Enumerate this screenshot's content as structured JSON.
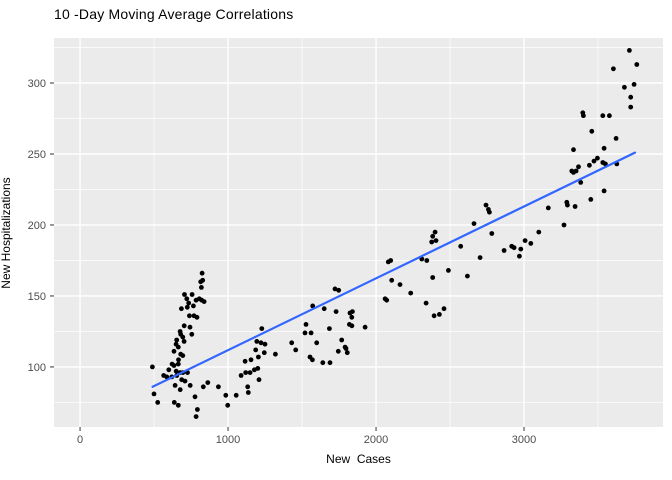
{
  "chart_data": {
    "type": "scatter",
    "title": "10 -Day Moving Average Correlations",
    "xlabel": "New  Cases",
    "ylabel": "New Hospitalizations",
    "x_ticks": [
      0,
      1000,
      2000,
      3000
    ],
    "y_ticks": [
      100,
      150,
      200,
      250,
      300
    ],
    "x_minor_gridlines": [
      500,
      1500,
      2500,
      3500
    ],
    "y_minor_gridlines": [
      75,
      125,
      175,
      225,
      275,
      325
    ],
    "xlim": [
      -176,
      3939
    ],
    "ylim": [
      57.7,
      331.7
    ],
    "grid": true,
    "legend_position": "none",
    "panel_bg_color": "#EBEBEB",
    "grid_color": "#FFFFFF",
    "tick_color": "#333333",
    "tick_label_color": "#4D4D4D",
    "point_color": "#000000",
    "trend_line": {
      "type": "linear",
      "color": "#3366FF",
      "x1": 490,
      "y1": 86,
      "x2": 3750,
      "y2": 251
    },
    "points": [
      [
        489,
        100
      ],
      [
        500,
        81
      ],
      [
        525,
        75
      ],
      [
        565,
        94
      ],
      [
        586,
        93
      ],
      [
        600,
        98
      ],
      [
        620,
        93
      ],
      [
        622,
        102
      ],
      [
        635,
        101
      ],
      [
        635,
        111
      ],
      [
        637,
        75
      ],
      [
        642,
        87
      ],
      [
        649,
        116
      ],
      [
        650,
        97
      ],
      [
        653,
        119
      ],
      [
        654,
        94
      ],
      [
        664,
        114
      ],
      [
        664,
        102
      ],
      [
        664,
        73
      ],
      [
        665,
        105
      ],
      [
        676,
        125
      ],
      [
        676,
        96
      ],
      [
        677,
        84
      ],
      [
        680,
        123
      ],
      [
        680,
        109
      ],
      [
        685,
        141
      ],
      [
        687,
        91
      ],
      [
        694,
        121
      ],
      [
        694,
        108
      ],
      [
        695,
        96
      ],
      [
        703,
        118
      ],
      [
        704,
        129
      ],
      [
        706,
        151
      ],
      [
        709,
        90
      ],
      [
        721,
        148
      ],
      [
        725,
        142
      ],
      [
        726,
        96
      ],
      [
        734,
        145
      ],
      [
        739,
        136
      ],
      [
        743,
        128
      ],
      [
        744,
        87
      ],
      [
        755,
        123
      ],
      [
        757,
        151
      ],
      [
        766,
        143
      ],
      [
        770,
        136
      ],
      [
        777,
        79
      ],
      [
        784,
        147
      ],
      [
        784,
        65
      ],
      [
        790,
        135
      ],
      [
        793,
        70
      ],
      [
        806,
        148
      ],
      [
        815,
        160
      ],
      [
        820,
        156
      ],
      [
        822,
        147
      ],
      [
        825,
        166
      ],
      [
        829,
        161
      ],
      [
        833,
        86
      ],
      [
        838,
        146
      ],
      [
        863,
        89
      ],
      [
        935,
        86
      ],
      [
        985,
        80
      ],
      [
        998,
        73
      ],
      [
        1055,
        80
      ],
      [
        1088,
        94
      ],
      [
        1115,
        104
      ],
      [
        1119,
        96
      ],
      [
        1133,
        86
      ],
      [
        1137,
        82
      ],
      [
        1149,
        96
      ],
      [
        1155,
        105
      ],
      [
        1178,
        98
      ],
      [
        1187,
        112
      ],
      [
        1194,
        118
      ],
      [
        1201,
        99
      ],
      [
        1205,
        107
      ],
      [
        1209,
        91
      ],
      [
        1223,
        117
      ],
      [
        1228,
        127
      ],
      [
        1245,
        110
      ],
      [
        1250,
        116
      ],
      [
        1320,
        109
      ],
      [
        1430,
        117
      ],
      [
        1457,
        112
      ],
      [
        1520,
        124
      ],
      [
        1527,
        130
      ],
      [
        1554,
        107
      ],
      [
        1561,
        124
      ],
      [
        1570,
        105
      ],
      [
        1572,
        143
      ],
      [
        1599,
        117
      ],
      [
        1640,
        103
      ],
      [
        1650,
        141
      ],
      [
        1685,
        127
      ],
      [
        1689,
        103
      ],
      [
        1723,
        155
      ],
      [
        1730,
        139
      ],
      [
        1748,
        154
      ],
      [
        1745,
        111
      ],
      [
        1768,
        119
      ],
      [
        1791,
        114
      ],
      [
        1797,
        113
      ],
      [
        1806,
        110
      ],
      [
        1820,
        130
      ],
      [
        1824,
        138
      ],
      [
        1836,
        135
      ],
      [
        1837,
        129
      ],
      [
        1840,
        139
      ],
      [
        1926,
        128
      ],
      [
        2061,
        148
      ],
      [
        2072,
        147
      ],
      [
        2083,
        174
      ],
      [
        2099,
        175
      ],
      [
        2106,
        161
      ],
      [
        2162,
        158
      ],
      [
        2234,
        152
      ],
      [
        2309,
        176
      ],
      [
        2338,
        145
      ],
      [
        2343,
        175
      ],
      [
        2376,
        188
      ],
      [
        2383,
        192
      ],
      [
        2383,
        163
      ],
      [
        2392,
        136
      ],
      [
        2399,
        195
      ],
      [
        2405,
        189
      ],
      [
        2428,
        137
      ],
      [
        2459,
        141
      ],
      [
        2489,
        168
      ],
      [
        2572,
        185
      ],
      [
        2617,
        164
      ],
      [
        2662,
        201
      ],
      [
        2703,
        177
      ],
      [
        2743,
        214
      ],
      [
        2759,
        211
      ],
      [
        2766,
        209
      ],
      [
        2782,
        194
      ],
      [
        2865,
        182
      ],
      [
        2917,
        185
      ],
      [
        2933,
        184
      ],
      [
        2969,
        178
      ],
      [
        2978,
        183
      ],
      [
        3007,
        189
      ],
      [
        3046,
        187
      ],
      [
        3100,
        195
      ],
      [
        3164,
        212
      ],
      [
        3270,
        200
      ],
      [
        3289,
        216
      ],
      [
        3293,
        214
      ],
      [
        3323,
        238
      ],
      [
        3334,
        253
      ],
      [
        3334,
        237
      ],
      [
        3345,
        213
      ],
      [
        3352,
        238
      ],
      [
        3368,
        241
      ],
      [
        3383,
        230
      ],
      [
        3397,
        279
      ],
      [
        3401,
        277
      ],
      [
        3442,
        242
      ],
      [
        3451,
        218
      ],
      [
        3458,
        266
      ],
      [
        3473,
        245
      ],
      [
        3496,
        247
      ],
      [
        3532,
        277
      ],
      [
        3532,
        244
      ],
      [
        3541,
        254
      ],
      [
        3541,
        224
      ],
      [
        3550,
        243
      ],
      [
        3577,
        277
      ],
      [
        3604,
        310
      ],
      [
        3622,
        261
      ],
      [
        3627,
        243
      ],
      [
        3678,
        297
      ],
      [
        3712,
        323
      ],
      [
        3721,
        290
      ],
      [
        3721,
        283
      ],
      [
        3744,
        299
      ],
      [
        3762,
        313
      ]
    ]
  }
}
